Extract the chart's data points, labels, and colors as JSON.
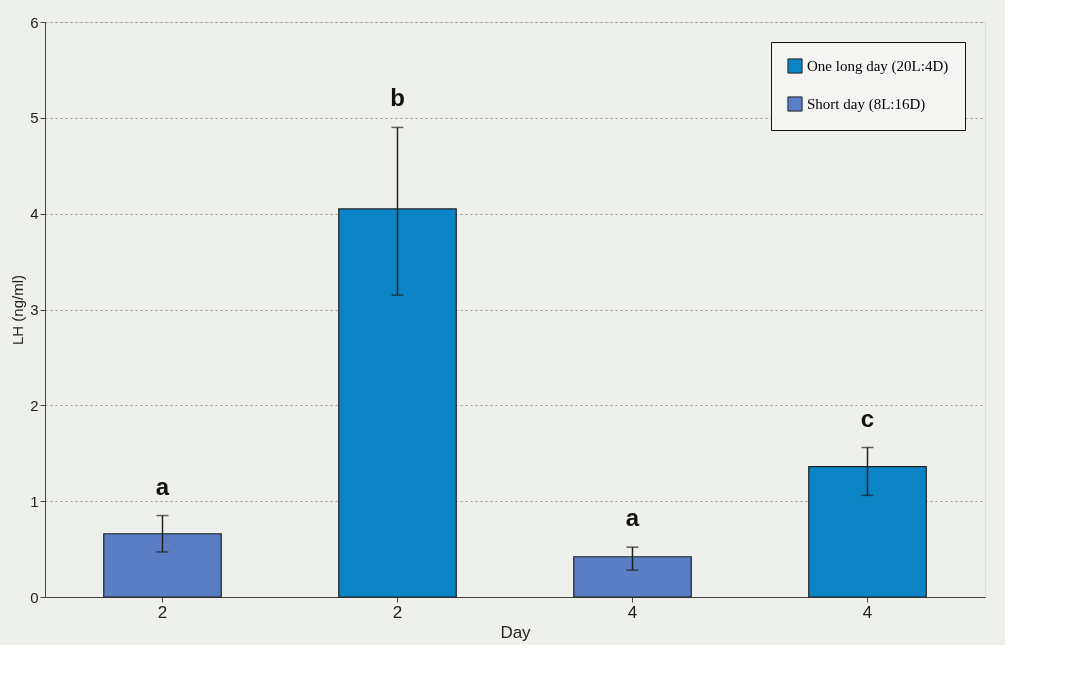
{
  "chart_data": {
    "type": "bar",
    "xlabel": "Day",
    "ylabel": "LH (ng/ml)",
    "categories": [
      "2",
      "2",
      "4",
      "4"
    ],
    "series": [
      {
        "name": "One long day (20L:4D)",
        "color": "#0b84c6",
        "values": [
          null,
          4.05,
          null,
          1.36
        ],
        "errors": [
          null,
          [
            3.15,
            4.9
          ],
          null,
          [
            1.06,
            1.56
          ]
        ]
      },
      {
        "name": "Short day (8L:16D)",
        "color": "#5a7dc4",
        "values": [
          0.66,
          null,
          0.42,
          null
        ],
        "errors": [
          [
            0.47,
            0.85
          ],
          null,
          [
            0.28,
            0.52
          ],
          null
        ]
      }
    ],
    "annotations": [
      "a",
      "b",
      "a",
      "c"
    ],
    "ylim": [
      0,
      6
    ],
    "yticks": [
      0,
      1,
      2,
      3,
      4,
      5,
      6
    ],
    "grid": "y",
    "legend": "top right"
  }
}
